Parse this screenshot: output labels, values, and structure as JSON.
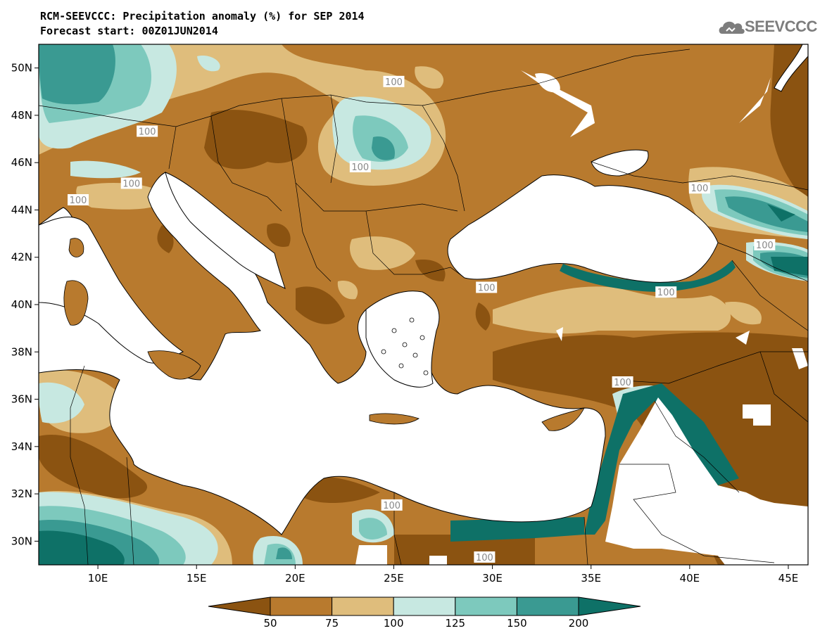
{
  "header": {
    "title_line1": "RCM-SEEVCCC: Precipitation anomaly (%) for SEP 2014",
    "title_line2": "Forecast start: 00Z01JUN2014",
    "logo_text": "SEEVCCC",
    "logo_icon": "cloud-icon"
  },
  "map": {
    "variable": "Precipitation anomaly (%)",
    "lon_range": [
      7,
      46
    ],
    "lat_range": [
      29,
      51
    ],
    "lon_ticks": [
      "10E",
      "15E",
      "20E",
      "25E",
      "30E",
      "35E",
      "40E",
      "45E"
    ],
    "lat_ticks": [
      "50N",
      "48N",
      "46N",
      "44N",
      "42N",
      "40N",
      "38N",
      "36N",
      "34N",
      "32N",
      "30N"
    ],
    "sea_color": "#ffffff",
    "contour_labels": [
      {
        "text": "100",
        "lon": 25.0,
        "lat": 49.4
      },
      {
        "text": "100",
        "lon": 12.5,
        "lat": 47.3
      },
      {
        "text": "100",
        "lon": 23.3,
        "lat": 45.8
      },
      {
        "text": "100",
        "lon": 11.7,
        "lat": 45.1
      },
      {
        "text": "100",
        "lon": 9.0,
        "lat": 44.4
      },
      {
        "text": "100",
        "lon": 40.5,
        "lat": 44.9
      },
      {
        "text": "100",
        "lon": 43.8,
        "lat": 42.5
      },
      {
        "text": "100",
        "lon": 29.7,
        "lat": 40.7
      },
      {
        "text": "100",
        "lon": 38.8,
        "lat": 40.5
      },
      {
        "text": "100",
        "lon": 36.6,
        "lat": 36.7
      },
      {
        "text": "100",
        "lon": 24.9,
        "lat": 31.5
      },
      {
        "text": "100",
        "lon": 29.6,
        "lat": 29.3
      }
    ]
  },
  "colorbar": {
    "tick_labels": [
      "50",
      "75",
      "100",
      "125",
      "150",
      "200"
    ],
    "bins": [
      {
        "range": "<50",
        "color": "#8b5311"
      },
      {
        "range": "50-75",
        "color": "#b87a2e"
      },
      {
        "range": "75-100",
        "color": "#dfbd7c"
      },
      {
        "range": "100-125",
        "color": "#c7e8e1"
      },
      {
        "range": "125-150",
        "color": "#7dc9bd"
      },
      {
        "range": "150-200",
        "color": "#3a9a92"
      },
      {
        "range": ">200",
        "color": "#0e7167"
      }
    ]
  }
}
